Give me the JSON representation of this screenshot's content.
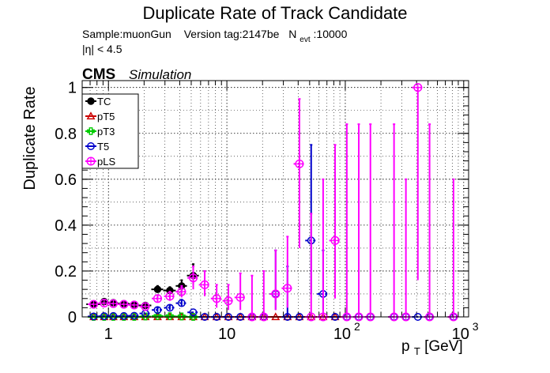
{
  "chart_data": {
    "type": "scatter",
    "title": "Duplicate Rate of Track Candidate",
    "info_line1": {
      "sample": "Sample:muonGun",
      "version": "Version tag:2147be",
      "nevt_prefix": "N",
      "nevt_sub": "evt",
      "nevt_value": ":10000"
    },
    "info_line2": "|η| < 4.5",
    "cms_label": "CMS",
    "simulation_label": "Simulation",
    "xlabel_main": "p",
    "xlabel_sub": "T",
    "xlabel_unit": " [GeV]",
    "ylabel": "Duplicate Rate",
    "x_scale": "log",
    "xlim": [
      0.6,
      1100
    ],
    "ylim": [
      0,
      1.03
    ],
    "grid": true,
    "legend_position": "top-left",
    "x_ticks": [
      {
        "value": 1,
        "label": "1"
      },
      {
        "value": 10,
        "label": "10"
      },
      {
        "value": 100,
        "label": "10",
        "exp": "2"
      },
      {
        "value": 1000,
        "label": "10",
        "exp": "3"
      }
    ],
    "y_ticks": [
      {
        "value": 0,
        "label": "0"
      },
      {
        "value": 0.2,
        "label": "0.2"
      },
      {
        "value": 0.4,
        "label": "0.4"
      },
      {
        "value": 0.6,
        "label": "0.6"
      },
      {
        "value": 0.8,
        "label": "0.8"
      },
      {
        "value": 1,
        "label": "1"
      }
    ],
    "series": [
      {
        "name": "TC",
        "color": "#000000",
        "marker": "filled-circle",
        "errorbars_dashed": false,
        "points": [
          {
            "x": 0.75,
            "y": 0.055,
            "xlo": 0.65,
            "xhi": 0.85,
            "ylo": 0.048,
            "yhi": 0.062
          },
          {
            "x": 0.92,
            "y": 0.067,
            "xlo": 0.85,
            "xhi": 1.0,
            "ylo": 0.06,
            "yhi": 0.074
          },
          {
            "x": 1.1,
            "y": 0.062,
            "xlo": 1.0,
            "xhi": 1.2,
            "ylo": 0.055,
            "yhi": 0.069
          },
          {
            "x": 1.35,
            "y": 0.058,
            "xlo": 1.2,
            "xhi": 1.5,
            "ylo": 0.051,
            "yhi": 0.065
          },
          {
            "x": 1.65,
            "y": 0.055,
            "xlo": 1.5,
            "xhi": 1.8,
            "ylo": 0.048,
            "yhi": 0.062
          },
          {
            "x": 2.05,
            "y": 0.05,
            "xlo": 1.8,
            "xhi": 2.3,
            "ylo": 0.043,
            "yhi": 0.057
          },
          {
            "x": 2.6,
            "y": 0.12,
            "xlo": 2.3,
            "xhi": 2.9,
            "ylo": 0.105,
            "yhi": 0.135
          },
          {
            "x": 3.3,
            "y": 0.115,
            "xlo": 2.9,
            "xhi": 3.7,
            "ylo": 0.1,
            "yhi": 0.13
          },
          {
            "x": 4.15,
            "y": 0.135,
            "xlo": 3.7,
            "xhi": 4.6,
            "ylo": 0.11,
            "yhi": 0.16
          },
          {
            "x": 5.2,
            "y": 0.18,
            "xlo": 4.6,
            "xhi": 5.8,
            "ylo": 0.14,
            "yhi": 0.23
          }
        ]
      },
      {
        "name": "pT5",
        "color": "#cc0000",
        "marker": "open-triangle",
        "errorbars_dashed": false,
        "points": [
          {
            "x": 0.75,
            "y": 0.0
          },
          {
            "x": 0.92,
            "y": 0.0
          },
          {
            "x": 1.1,
            "y": 0.0
          },
          {
            "x": 1.35,
            "y": 0.0
          },
          {
            "x": 1.65,
            "y": 0.0
          },
          {
            "x": 2.05,
            "y": 0.0
          },
          {
            "x": 2.6,
            "y": 0.0
          },
          {
            "x": 3.3,
            "y": 0.0
          },
          {
            "x": 4.15,
            "y": 0.0
          },
          {
            "x": 5.2,
            "y": 0.0
          },
          {
            "x": 6.5,
            "y": 0.0
          },
          {
            "x": 8.2,
            "y": 0.0
          },
          {
            "x": 10.3,
            "y": 0.0
          },
          {
            "x": 13.0,
            "y": 0.0
          },
          {
            "x": 16.3,
            "y": 0.0
          },
          {
            "x": 20.5,
            "y": 0.0
          },
          {
            "x": 25.8,
            "y": 0.0
          },
          {
            "x": 32.5,
            "y": 0.0
          },
          {
            "x": 41.0,
            "y": 0.0
          },
          {
            "x": 51.5,
            "y": 0.0
          },
          {
            "x": 65.0,
            "y": 0.0
          },
          {
            "x": 82.0,
            "y": 0.0
          }
        ]
      },
      {
        "name": "pT3",
        "color": "#00cc00",
        "marker": "open-cross",
        "errorbars_dashed": false,
        "points": [
          {
            "x": 0.75,
            "y": 0.0
          },
          {
            "x": 0.92,
            "y": 0.0
          },
          {
            "x": 1.1,
            "y": 0.0
          },
          {
            "x": 1.35,
            "y": 0.0
          },
          {
            "x": 1.65,
            "y": 0.0
          },
          {
            "x": 2.05,
            "y": 0.002
          },
          {
            "x": 2.6,
            "y": 0.004
          },
          {
            "x": 3.3,
            "y": 0.003
          },
          {
            "x": 4.15,
            "y": 0.002
          },
          {
            "x": 5.2,
            "y": 0.0
          }
        ]
      },
      {
        "name": "T5",
        "color": "#0000cc",
        "marker": "open-circle",
        "errorbars_dashed": true,
        "points": [
          {
            "x": 0.75,
            "y": 0.002
          },
          {
            "x": 0.92,
            "y": 0.003
          },
          {
            "x": 1.1,
            "y": 0.004
          },
          {
            "x": 1.35,
            "y": 0.004
          },
          {
            "x": 1.65,
            "y": 0.005
          },
          {
            "x": 2.05,
            "y": 0.015
          },
          {
            "x": 2.6,
            "y": 0.03,
            "ylo": 0.02,
            "yhi": 0.04
          },
          {
            "x": 3.3,
            "y": 0.04,
            "ylo": 0.03,
            "yhi": 0.05
          },
          {
            "x": 4.15,
            "y": 0.06,
            "ylo": 0.045,
            "yhi": 0.075
          },
          {
            "x": 5.2,
            "y": 0.02
          },
          {
            "x": 6.5,
            "y": 0.0
          },
          {
            "x": 8.2,
            "y": 0.0
          },
          {
            "x": 10.3,
            "y": 0.0
          },
          {
            "x": 13.0,
            "y": 0.0
          },
          {
            "x": 16.3,
            "y": 0.0
          },
          {
            "x": 20.5,
            "y": 0.0
          },
          {
            "x": 25.8,
            "y": 0.1,
            "xlo": 23.0,
            "xhi": 28.9,
            "ylo": 0.03,
            "yhi": 0.29
          },
          {
            "x": 32.5,
            "y": 0.0,
            "ylo": 0.0,
            "yhi": 0.22
          },
          {
            "x": 41.0,
            "y": 0.0
          },
          {
            "x": 51.5,
            "y": 0.333,
            "xlo": 45.9,
            "xhi": 57.8,
            "ylo": 0.1,
            "yhi": 0.75
          },
          {
            "x": 65.0,
            "y": 0.1,
            "xlo": 57.8,
            "xhi": 72.8,
            "ylo": 0.03,
            "yhi": 0.29
          },
          {
            "x": 82.0,
            "y": 0.0
          },
          {
            "x": 103,
            "y": 0.0
          },
          {
            "x": 130,
            "y": 0.0
          },
          {
            "x": 163,
            "y": 0.0
          },
          {
            "x": 258,
            "y": 0.0
          },
          {
            "x": 325,
            "y": 0.0
          },
          {
            "x": 410,
            "y": 0.0
          },
          {
            "x": 515,
            "y": 0.0
          },
          {
            "x": 820,
            "y": 0.0
          }
        ]
      },
      {
        "name": "pLS",
        "color": "#ff00ff",
        "marker": "open-star",
        "errorbars_dashed": true,
        "points": [
          {
            "x": 0.75,
            "y": 0.055
          },
          {
            "x": 0.92,
            "y": 0.06
          },
          {
            "x": 1.1,
            "y": 0.058
          },
          {
            "x": 1.35,
            "y": 0.055
          },
          {
            "x": 1.65,
            "y": 0.052
          },
          {
            "x": 2.05,
            "y": 0.045
          },
          {
            "x": 2.6,
            "y": 0.08,
            "ylo": 0.065,
            "yhi": 0.095
          },
          {
            "x": 3.3,
            "y": 0.09,
            "ylo": 0.07,
            "yhi": 0.11
          },
          {
            "x": 4.15,
            "y": 0.11,
            "ylo": 0.085,
            "yhi": 0.135
          },
          {
            "x": 5.2,
            "y": 0.17,
            "ylo": 0.12,
            "yhi": 0.22
          },
          {
            "x": 6.5,
            "y": 0.14,
            "ylo": 0.09,
            "yhi": 0.2
          },
          {
            "x": 8.2,
            "y": 0.08,
            "ylo": 0.04,
            "yhi": 0.14
          },
          {
            "x": 10.3,
            "y": 0.07,
            "ylo": 0.03,
            "yhi": 0.14
          },
          {
            "x": 13.0,
            "y": 0.085,
            "ylo": 0.03,
            "yhi": 0.19
          },
          {
            "x": 16.3,
            "y": 0.0,
            "ylo": 0.0,
            "yhi": 0.18
          },
          {
            "x": 20.5,
            "y": 0.0,
            "ylo": 0.0,
            "yhi": 0.2
          },
          {
            "x": 25.8,
            "y": 0.1,
            "ylo": 0.03,
            "yhi": 0.29
          },
          {
            "x": 32.5,
            "y": 0.125,
            "ylo": 0.04,
            "yhi": 0.35
          },
          {
            "x": 41.0,
            "y": 0.667,
            "ylo": 0.3,
            "yhi": 0.95
          },
          {
            "x": 51.5,
            "y": 0.0,
            "ylo": 0.0,
            "yhi": 0.45
          },
          {
            "x": 65.0,
            "y": 0.0,
            "ylo": 0.0,
            "yhi": 0.6
          },
          {
            "x": 82.0,
            "y": 0.333,
            "ylo": 0.08,
            "yhi": 0.75
          },
          {
            "x": 103,
            "y": 0.0,
            "ylo": 0.0,
            "yhi": 0.84
          },
          {
            "x": 130,
            "y": 0.0,
            "ylo": 0.0,
            "yhi": 0.84
          },
          {
            "x": 163,
            "y": 0.0,
            "ylo": 0.0,
            "yhi": 0.84
          },
          {
            "x": 258,
            "y": 0.0,
            "ylo": 0.0,
            "yhi": 0.84
          },
          {
            "x": 325,
            "y": 0.0,
            "ylo": 0.0,
            "yhi": 0.6
          },
          {
            "x": 410,
            "y": 1.0,
            "ylo": 0.16,
            "yhi": 1.0
          },
          {
            "x": 515,
            "y": 0.0,
            "ylo": 0.0,
            "yhi": 0.84
          },
          {
            "x": 820,
            "y": 0.0,
            "ylo": 0.0,
            "yhi": 0.6
          }
        ]
      }
    ]
  }
}
